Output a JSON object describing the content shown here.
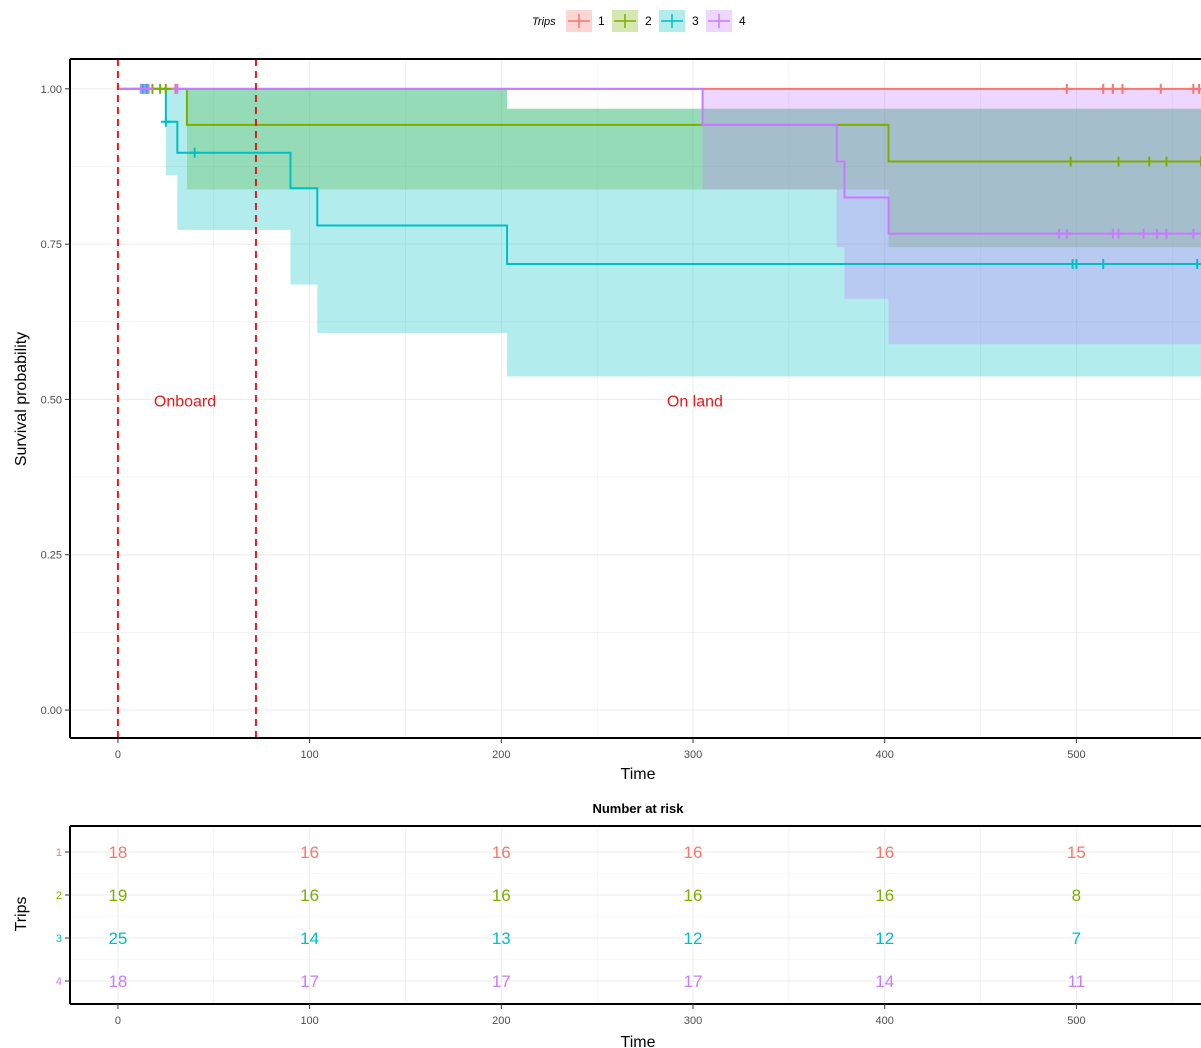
{
  "chart_data": [
    {
      "type": "line",
      "subtype": "kaplan-meier step",
      "xlabel": "Time",
      "ylabel": "Survival probability",
      "xlim": [
        -25,
        565
      ],
      "ylim": [
        -0.045,
        1.048
      ],
      "xticks": [
        "0",
        "100",
        "200",
        "300",
        "400",
        "500"
      ],
      "xtick_values": [
        0,
        100,
        200,
        300,
        400,
        500
      ],
      "yticks": [
        "0.00",
        "0.25",
        "0.50",
        "0.75",
        "1.00"
      ],
      "ytick_values": [
        0,
        0.25,
        0.5,
        0.75,
        1.0
      ],
      "grid": true,
      "legend": {
        "title": "Trips",
        "placement": "top",
        "entries": [
          "1",
          "2",
          "3",
          "4"
        ]
      },
      "vlines": [
        {
          "x": 0,
          "color": "#e41a1c",
          "style": "dashed"
        },
        {
          "x": 72,
          "color": "#e41a1c",
          "style": "dashed"
        }
      ],
      "annotations": [
        {
          "text": "Onboard",
          "x": 35,
          "y": 0.497
        },
        {
          "text": "On land",
          "x": 301,
          "y": 0.497
        }
      ],
      "series": [
        {
          "name": "1",
          "color": "#f8766d",
          "steps": [
            [
              0,
              1.0
            ]
          ],
          "x_end": 565,
          "ci_bands": [
            {
              "x0": 0,
              "x1": 565,
              "upper": 1.0,
              "lower": 1.0
            }
          ],
          "censor_x": [
            30,
            495,
            514,
            519,
            524,
            544,
            561,
            564
          ]
        },
        {
          "name": "2",
          "color": "#7cae00",
          "steps": [
            [
              0,
              1.0
            ],
            [
              36,
              0.942
            ],
            [
              402,
              0.883
            ]
          ],
          "x_end": 565,
          "ci_bands": [
            {
              "x0": 36,
              "x1": 203,
              "upper": 1.0,
              "lower": 0.838
            },
            {
              "x0": 203,
              "x1": 402,
              "upper": 0.968,
              "lower": 0.838
            },
            {
              "x0": 402,
              "x1": 565,
              "upper": 0.968,
              "lower": 0.745
            }
          ],
          "censor_x": [
            18,
            22,
            25,
            497,
            522,
            538,
            547,
            565
          ]
        },
        {
          "name": "3",
          "color": "#00bfc4",
          "steps": [
            [
              0,
              1.0
            ],
            [
              25,
              0.947
            ],
            [
              31,
              0.897
            ],
            [
              90,
              0.84
            ],
            [
              104,
              0.78
            ],
            [
              203,
              0.718
            ]
          ],
          "x_end": 565,
          "ci_bands": [
            {
              "x0": 25,
              "x1": 31,
              "upper": 1.0,
              "lower": 0.861
            },
            {
              "x0": 31,
              "x1": 90,
              "upper": 1.0,
              "lower": 0.773
            },
            {
              "x0": 90,
              "x1": 104,
              "upper": 1.0,
              "lower": 0.685
            },
            {
              "x0": 104,
              "x1": 203,
              "upper": 1.0,
              "lower": 0.607
            },
            {
              "x0": 203,
              "x1": 565,
              "upper": 0.968,
              "lower": 0.537
            }
          ],
          "censor_x": [
            13,
            15,
            25,
            40,
            498,
            500,
            514,
            563
          ]
        },
        {
          "name": "4",
          "color": "#c77cff",
          "steps": [
            [
              0,
              1.0
            ],
            [
              305,
              0.942
            ],
            [
              375,
              0.883
            ],
            [
              379,
              0.825
            ],
            [
              402,
              0.767
            ]
          ],
          "x_end": 565,
          "ci_bands": [
            {
              "x0": 305,
              "x1": 375,
              "upper": 1.0,
              "lower": 0.838
            },
            {
              "x0": 375,
              "x1": 379,
              "upper": 1.0,
              "lower": 0.745
            },
            {
              "x0": 379,
              "x1": 402,
              "upper": 1.0,
              "lower": 0.662
            },
            {
              "x0": 402,
              "x1": 565,
              "upper": 1.0,
              "lower": 0.589
            }
          ],
          "censor_x": [
            12,
            14,
            16,
            31,
            491,
            495,
            519,
            522,
            535,
            542,
            547,
            561
          ]
        }
      ]
    },
    {
      "type": "table",
      "title": "Number at risk",
      "xlabel": "Time",
      "ylabel": "Trips",
      "x": [
        0,
        100,
        200,
        300,
        400,
        500
      ],
      "xticks": [
        "0",
        "100",
        "200",
        "300",
        "400",
        "500"
      ],
      "row_labels": [
        "1",
        "2",
        "3",
        "4"
      ],
      "rows": [
        {
          "name": "1",
          "color": "#f8766d",
          "values": [
            18,
            16,
            16,
            16,
            16,
            15
          ]
        },
        {
          "name": "2",
          "color": "#7cae00",
          "values": [
            19,
            16,
            16,
            16,
            16,
            8
          ]
        },
        {
          "name": "3",
          "color": "#00bfc4",
          "values": [
            25,
            14,
            13,
            12,
            12,
            7
          ]
        },
        {
          "name": "4",
          "color": "#c77cff",
          "values": [
            18,
            17,
            17,
            17,
            14,
            11
          ]
        }
      ]
    }
  ]
}
